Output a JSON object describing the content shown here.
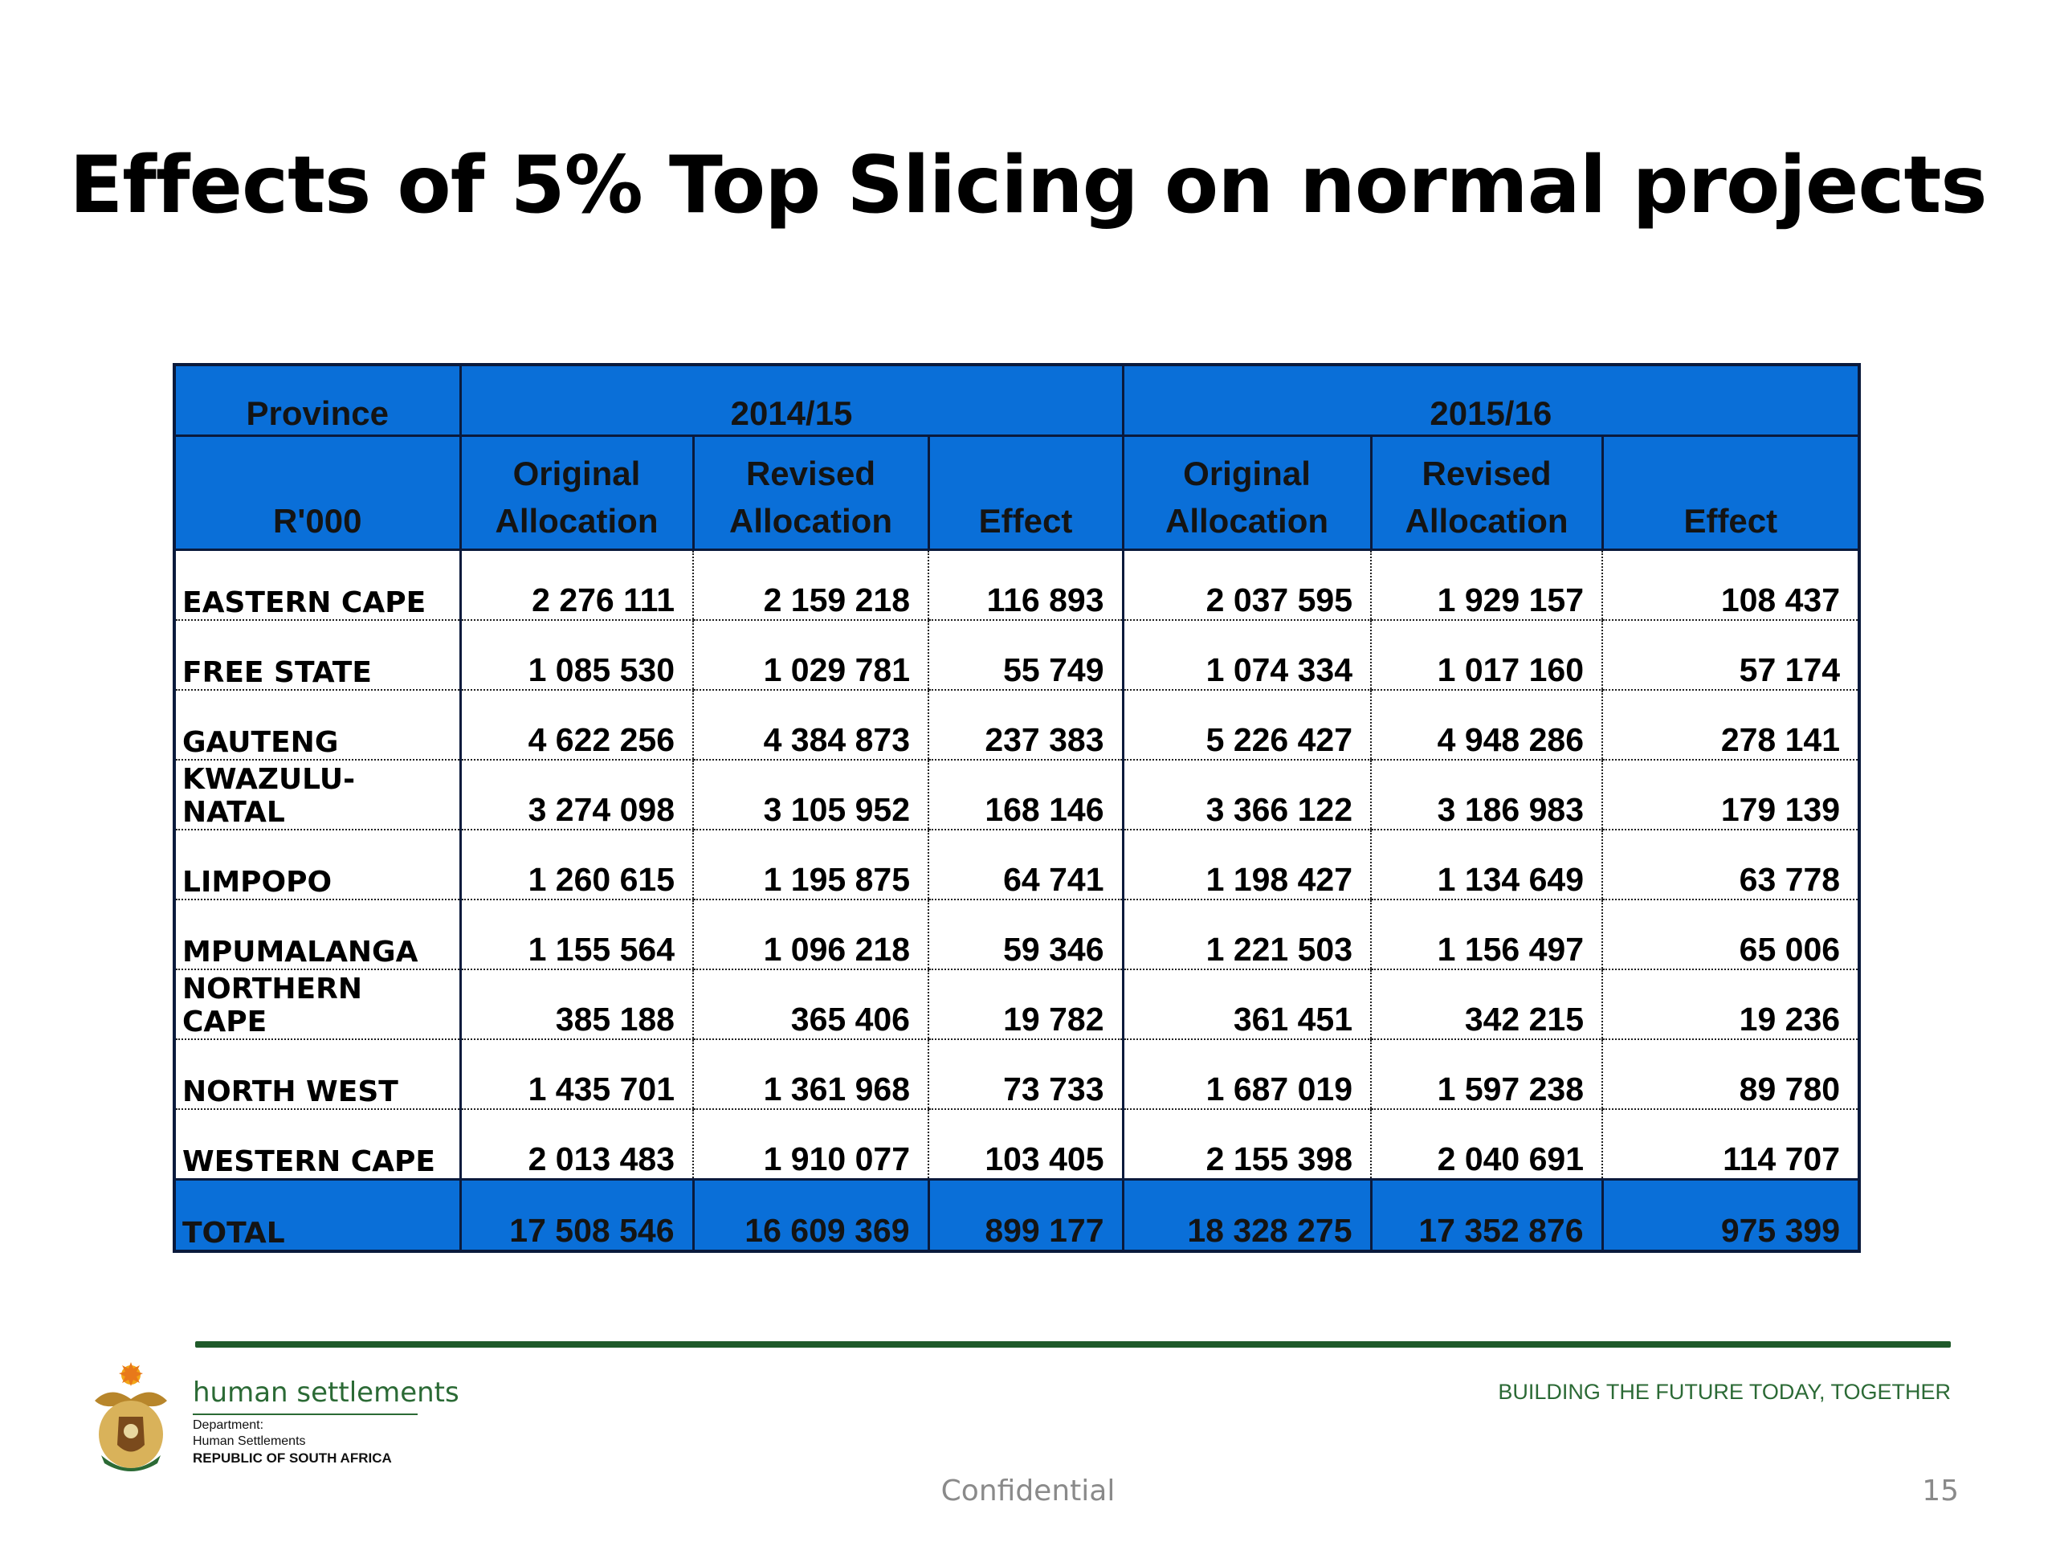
{
  "title": "Effects of 5% Top Slicing on normal projects",
  "table": {
    "header_top": {
      "province": "Province",
      "year1": "2014/15",
      "year2": "2015/16"
    },
    "header_sub": {
      "unit": "R'000",
      "orig1": "Original Allocation",
      "rev1": "Revised Allocation",
      "eff1": "Effect",
      "orig2": "Original Allocation",
      "rev2": "Revised Allocation",
      "eff2": "Effect"
    },
    "rows": [
      [
        "EASTERN CAPE",
        "2 276 111",
        "2 159 218",
        "116 893",
        "2 037 595",
        "1 929 157",
        "108 437"
      ],
      [
        "FREE STATE",
        "1 085 530",
        "1 029 781",
        "55 749",
        "1 074 334",
        "1 017 160",
        "57 174"
      ],
      [
        "GAUTENG",
        "4 622 256",
        "4 384 873",
        "237 383",
        "5 226 427",
        "4 948 286",
        "278 141"
      ],
      [
        "KWAZULU-NATAL",
        "3 274 098",
        "3 105 952",
        "168 146",
        "3 366 122",
        "3 186 983",
        "179 139"
      ],
      [
        "LIMPOPO",
        "1 260 615",
        "1 195 875",
        "64 741",
        "1 198 427",
        "1 134 649",
        "63 778"
      ],
      [
        "MPUMALANGA",
        "1 155 564",
        "1 096 218",
        "59 346",
        "1 221 503",
        "1 156 497",
        "65 006"
      ],
      [
        "NORTHERN CAPE",
        "385 188",
        "365 406",
        "19 782",
        "361 451",
        "342 215",
        "19 236"
      ],
      [
        "NORTH WEST",
        "1 435 701",
        "1 361 968",
        "73 733",
        "1 687 019",
        "1 597 238",
        "89 780"
      ],
      [
        "WESTERN CAPE",
        "2 013 483",
        "1 910 077",
        "103 405",
        "2 155 398",
        "2 040 691",
        "114 707"
      ]
    ],
    "total": [
      "TOTAL",
      "17 508 546",
      "16 609 369",
      "899 177",
      "18 328 275",
      "17 352 876",
      "975 399"
    ]
  },
  "footer": {
    "dept_name": "human settlements",
    "dept_line1": "Department:",
    "dept_line2": "Human Settlements",
    "dept_line3": "REPUBLIC OF SOUTH AFRICA",
    "tagline": "BUILDING THE FUTURE TODAY, TOGETHER",
    "confidential": "Confidential",
    "page_number": "15"
  },
  "colors": {
    "header_blue": "#0a6fd8",
    "rule_green": "#1f5a2a",
    "text_green": "#2b6a35"
  }
}
